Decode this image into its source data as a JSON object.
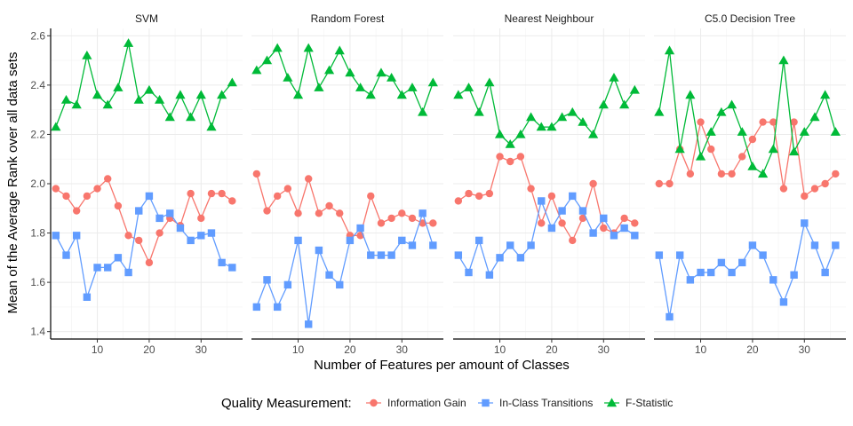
{
  "chart_data": {
    "type": "line",
    "xlabel": "Number of Features per amount of Classes",
    "ylabel": "Mean of the Average Rank over all data sets",
    "xlim": [
      1,
      38
    ],
    "ylim": [
      1.37,
      2.63
    ],
    "x_ticks": [
      10,
      20,
      30
    ],
    "y_ticks": [
      1.4,
      1.6,
      1.8,
      2.0,
      2.2,
      2.4,
      2.6
    ],
    "y_tick_labels": [
      "1.4",
      "1.6",
      "1.8",
      "2.0",
      "2.2",
      "2.4",
      "2.6"
    ],
    "grid": true,
    "legend": {
      "title": "Quality Measurement:",
      "position": "bottom",
      "entries": [
        "Information Gain",
        "In-Class Transitions",
        "F-Statistic"
      ]
    },
    "series_styles": [
      {
        "name": "Information Gain",
        "color": "#F8766D",
        "shape": "circle"
      },
      {
        "name": "In-Class Transitions",
        "color": "#619CFF",
        "shape": "square"
      },
      {
        "name": "F-Statistic",
        "color": "#00BA38",
        "shape": "triangle"
      }
    ],
    "x": [
      2,
      4,
      6,
      8,
      10,
      12,
      14,
      16,
      18,
      20,
      22,
      24,
      26,
      28,
      30,
      32,
      34,
      36
    ],
    "panels": [
      {
        "title": "SVM",
        "series": [
          {
            "name": "Information Gain",
            "values": [
              1.98,
              1.95,
              1.89,
              1.95,
              1.98,
              2.02,
              1.91,
              1.79,
              1.77,
              1.68,
              1.8,
              1.86,
              1.83,
              1.96,
              1.86,
              1.96,
              1.96,
              1.93
            ]
          },
          {
            "name": "In-Class Transitions",
            "values": [
              1.79,
              1.71,
              1.79,
              1.54,
              1.66,
              1.66,
              1.7,
              1.64,
              1.89,
              1.95,
              1.86,
              1.88,
              1.82,
              1.77,
              1.79,
              1.8,
              1.68,
              1.66
            ]
          },
          {
            "name": "F-Statistic",
            "values": [
              2.23,
              2.34,
              2.32,
              2.52,
              2.36,
              2.32,
              2.39,
              2.57,
              2.34,
              2.38,
              2.34,
              2.27,
              2.36,
              2.27,
              2.36,
              2.23,
              2.36,
              2.41
            ]
          }
        ]
      },
      {
        "title": "Random Forest",
        "series": [
          {
            "name": "Information Gain",
            "values": [
              2.04,
              1.89,
              1.95,
              1.98,
              1.88,
              2.02,
              1.88,
              1.91,
              1.88,
              1.79,
              1.79,
              1.95,
              1.84,
              1.86,
              1.88,
              1.86,
              1.84,
              1.84
            ]
          },
          {
            "name": "In-Class Transitions",
            "values": [
              1.5,
              1.61,
              1.5,
              1.59,
              1.77,
              1.43,
              1.73,
              1.63,
              1.59,
              1.77,
              1.82,
              1.71,
              1.71,
              1.71,
              1.77,
              1.75,
              1.88,
              1.75
            ]
          },
          {
            "name": "F-Statistic",
            "values": [
              2.46,
              2.5,
              2.55,
              2.43,
              2.36,
              2.55,
              2.39,
              2.46,
              2.54,
              2.45,
              2.39,
              2.36,
              2.45,
              2.43,
              2.36,
              2.39,
              2.29,
              2.41
            ]
          }
        ]
      },
      {
        "title": "Nearest Neighbour",
        "series": [
          {
            "name": "Information Gain",
            "values": [
              1.93,
              1.96,
              1.95,
              1.96,
              2.11,
              2.09,
              2.11,
              1.98,
              1.84,
              1.95,
              1.84,
              1.77,
              1.86,
              2.0,
              1.82,
              1.8,
              1.86,
              1.84
            ]
          },
          {
            "name": "In-Class Transitions",
            "values": [
              1.71,
              1.64,
              1.77,
              1.63,
              1.7,
              1.75,
              1.7,
              1.75,
              1.93,
              1.82,
              1.89,
              1.95,
              1.89,
              1.8,
              1.86,
              1.79,
              1.82,
              1.79
            ]
          },
          {
            "name": "F-Statistic",
            "values": [
              2.36,
              2.39,
              2.29,
              2.41,
              2.2,
              2.16,
              2.2,
              2.27,
              2.23,
              2.23,
              2.27,
              2.29,
              2.25,
              2.2,
              2.32,
              2.43,
              2.32,
              2.38
            ]
          }
        ]
      },
      {
        "title": "C5.0 Decision Tree",
        "series": [
          {
            "name": "Information Gain",
            "values": [
              2.0,
              2.0,
              2.14,
              2.04,
              2.25,
              2.14,
              2.04,
              2.04,
              2.11,
              2.18,
              2.25,
              2.25,
              1.98,
              2.25,
              1.95,
              1.98,
              2.0,
              2.04
            ]
          },
          {
            "name": "In-Class Transitions",
            "values": [
              1.71,
              1.46,
              1.71,
              1.61,
              1.64,
              1.64,
              1.68,
              1.64,
              1.68,
              1.75,
              1.71,
              1.61,
              1.52,
              1.63,
              1.84,
              1.75,
              1.64,
              1.75
            ]
          },
          {
            "name": "F-Statistic",
            "values": [
              2.29,
              2.54,
              2.14,
              2.36,
              2.11,
              2.21,
              2.29,
              2.32,
              2.21,
              2.07,
              2.04,
              2.14,
              2.5,
              2.13,
              2.21,
              2.27,
              2.36,
              2.21
            ]
          }
        ]
      }
    ]
  }
}
